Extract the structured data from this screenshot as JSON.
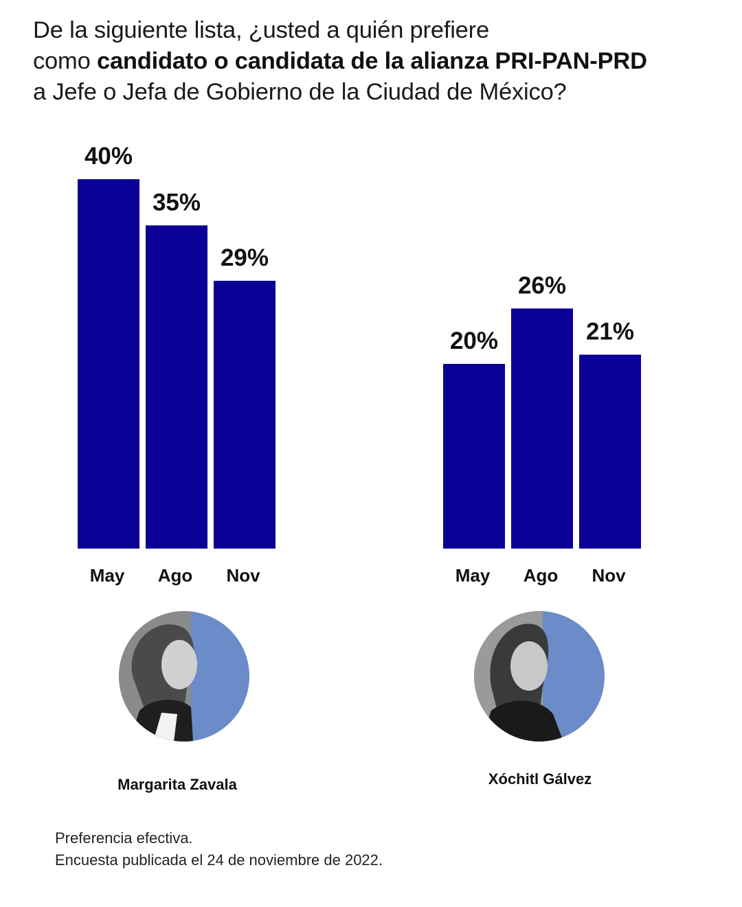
{
  "question": {
    "line1": "De la siguiente lista, ¿usted a quién prefiere",
    "line2_prefix": "como ",
    "line2_bold": "candidato o candidata de la alianza PRI-PAN-PRD",
    "line3": "a Jefe o Jefa de Gobierno de la Ciudad de México?"
  },
  "colors": {
    "bar": "#0a0096",
    "photo_background": "#6b8cc8"
  },
  "chart_data": [
    {
      "type": "bar",
      "title": "",
      "candidate": "Margarita Zavala",
      "categories": [
        "May",
        "Ago",
        "Nov"
      ],
      "values": [
        40,
        35,
        29
      ],
      "value_labels": [
        "40%",
        "35%",
        "29%"
      ],
      "unit": "%",
      "ylim": [
        0,
        40
      ],
      "grid": false
    },
    {
      "type": "bar",
      "title": "",
      "candidate": "Xóchitl Gálvez",
      "categories": [
        "May",
        "Ago",
        "Nov"
      ],
      "values": [
        20,
        26,
        21
      ],
      "value_labels": [
        "20%",
        "26%",
        "21%"
      ],
      "unit": "%",
      "ylim": [
        0,
        40
      ],
      "grid": false
    }
  ],
  "candidates": [
    {
      "name": "Margarita Zavala",
      "photo_icon": "portrait-photo"
    },
    {
      "name": "Xóchitl Gálvez",
      "photo_icon": "portrait-photo"
    }
  ],
  "footnote": {
    "line1": "Preferencia efectiva.",
    "line2": "Encuesta publicada el 24 de noviembre de 2022."
  }
}
